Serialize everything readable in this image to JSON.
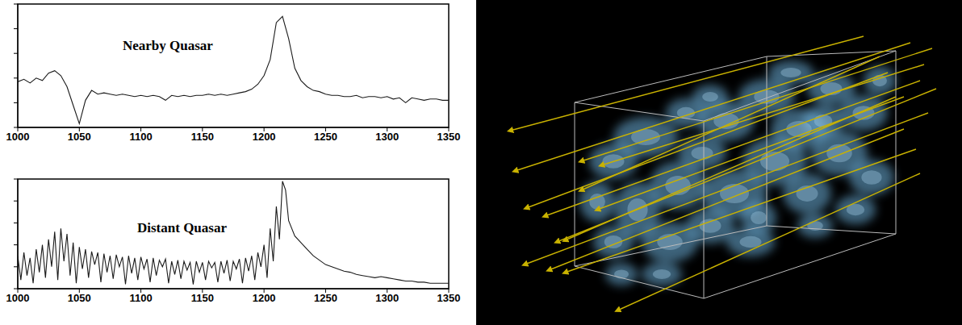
{
  "chart_data": [
    {
      "type": "line",
      "title": "Nearby Quasar",
      "color": "#1a1a1a",
      "grid": false,
      "tick_labels": "x",
      "xlim": [
        1000,
        1350
      ],
      "xticks": [
        1000,
        1050,
        1100,
        1150,
        1200,
        1250,
        1300,
        1350
      ],
      "ylim": [
        0,
        1
      ],
      "yticks": [
        0,
        0.2,
        0.4,
        0.6,
        0.8,
        1
      ],
      "x": [
        1000,
        1005,
        1010,
        1015,
        1020,
        1025,
        1030,
        1035,
        1040,
        1045,
        1050,
        1055,
        1060,
        1065,
        1070,
        1075,
        1080,
        1085,
        1090,
        1095,
        1100,
        1105,
        1110,
        1115,
        1120,
        1125,
        1130,
        1135,
        1140,
        1145,
        1150,
        1155,
        1160,
        1165,
        1170,
        1175,
        1180,
        1185,
        1190,
        1195,
        1200,
        1205,
        1210,
        1215,
        1220,
        1225,
        1230,
        1235,
        1240,
        1245,
        1250,
        1255,
        1260,
        1265,
        1270,
        1275,
        1280,
        1285,
        1290,
        1295,
        1300,
        1305,
        1310,
        1315,
        1320,
        1325,
        1330,
        1335,
        1340,
        1345,
        1350
      ],
      "values": [
        0.37,
        0.39,
        0.36,
        0.4,
        0.38,
        0.44,
        0.46,
        0.42,
        0.33,
        0.18,
        0.03,
        0.22,
        0.3,
        0.27,
        0.28,
        0.27,
        0.26,
        0.27,
        0.26,
        0.25,
        0.26,
        0.25,
        0.26,
        0.25,
        0.22,
        0.26,
        0.25,
        0.26,
        0.25,
        0.26,
        0.26,
        0.27,
        0.26,
        0.27,
        0.26,
        0.27,
        0.28,
        0.29,
        0.31,
        0.35,
        0.42,
        0.55,
        0.85,
        0.9,
        0.72,
        0.48,
        0.38,
        0.33,
        0.3,
        0.29,
        0.27,
        0.26,
        0.26,
        0.25,
        0.25,
        0.26,
        0.24,
        0.25,
        0.25,
        0.24,
        0.25,
        0.23,
        0.24,
        0.2,
        0.24,
        0.23,
        0.22,
        0.23,
        0.23,
        0.22,
        0.22
      ]
    },
    {
      "type": "line",
      "title": "Distant Quasar",
      "color": "#1a1a1a",
      "grid": false,
      "tick_labels": "x",
      "xlim": [
        1000,
        1350
      ],
      "xticks": [
        1000,
        1050,
        1100,
        1150,
        1200,
        1250,
        1300,
        1350
      ],
      "ylim": [
        0,
        1
      ],
      "yticks": [
        0,
        0.2,
        0.4,
        0.6,
        0.8,
        1
      ],
      "x": [
        1000,
        1002.5,
        1005,
        1007.5,
        1010,
        1012.5,
        1015,
        1017.5,
        1020,
        1022.5,
        1025,
        1027.5,
        1030,
        1032.5,
        1035,
        1037.5,
        1040,
        1042.5,
        1045,
        1047.5,
        1050,
        1052.5,
        1055,
        1057.5,
        1060,
        1062.5,
        1065,
        1067.5,
        1070,
        1072.5,
        1075,
        1077.5,
        1080,
        1082.5,
        1085,
        1087.5,
        1090,
        1092.5,
        1095,
        1097.5,
        1100,
        1102.5,
        1105,
        1107.5,
        1110,
        1112.5,
        1115,
        1117.5,
        1120,
        1122.5,
        1125,
        1127.5,
        1130,
        1132.5,
        1135,
        1137.5,
        1140,
        1142.5,
        1145,
        1147.5,
        1150,
        1152.5,
        1155,
        1157.5,
        1160,
        1162.5,
        1165,
        1167.5,
        1170,
        1172.5,
        1175,
        1177.5,
        1180,
        1182.5,
        1185,
        1187.5,
        1190,
        1192.5,
        1195,
        1197.5,
        1200,
        1202.5,
        1205,
        1207.5,
        1210,
        1212.5,
        1215,
        1217.5,
        1220,
        1225,
        1230,
        1235,
        1240,
        1245,
        1250,
        1255,
        1260,
        1265,
        1270,
        1275,
        1280,
        1285,
        1290,
        1295,
        1300,
        1305,
        1310,
        1315,
        1320,
        1325,
        1330,
        1335,
        1340,
        1345,
        1350
      ],
      "values": [
        0.3,
        0.08,
        0.33,
        0.12,
        0.28,
        0.05,
        0.36,
        0.15,
        0.4,
        0.1,
        0.45,
        0.2,
        0.52,
        0.08,
        0.55,
        0.25,
        0.5,
        0.12,
        0.42,
        0.05,
        0.38,
        0.18,
        0.36,
        0.1,
        0.34,
        0.22,
        0.33,
        0.06,
        0.32,
        0.15,
        0.3,
        0.09,
        0.31,
        0.2,
        0.29,
        0.04,
        0.3,
        0.14,
        0.28,
        0.08,
        0.29,
        0.18,
        0.27,
        0.06,
        0.28,
        0.12,
        0.26,
        0.2,
        0.27,
        0.05,
        0.25,
        0.13,
        0.26,
        0.09,
        0.25,
        0.17,
        0.24,
        0.04,
        0.25,
        0.15,
        0.24,
        0.08,
        0.25,
        0.19,
        0.24,
        0.06,
        0.25,
        0.14,
        0.26,
        0.07,
        0.25,
        0.18,
        0.27,
        0.05,
        0.28,
        0.16,
        0.3,
        0.08,
        0.33,
        0.2,
        0.4,
        0.1,
        0.55,
        0.25,
        0.75,
        0.45,
        0.98,
        0.9,
        0.62,
        0.48,
        0.42,
        0.36,
        0.3,
        0.26,
        0.22,
        0.2,
        0.18,
        0.16,
        0.15,
        0.13,
        0.12,
        0.11,
        0.1,
        0.11,
        0.1,
        0.09,
        0.08,
        0.07,
        0.07,
        0.06,
        0.06,
        0.05,
        0.05,
        0.05,
        0.05
      ]
    }
  ]
}
